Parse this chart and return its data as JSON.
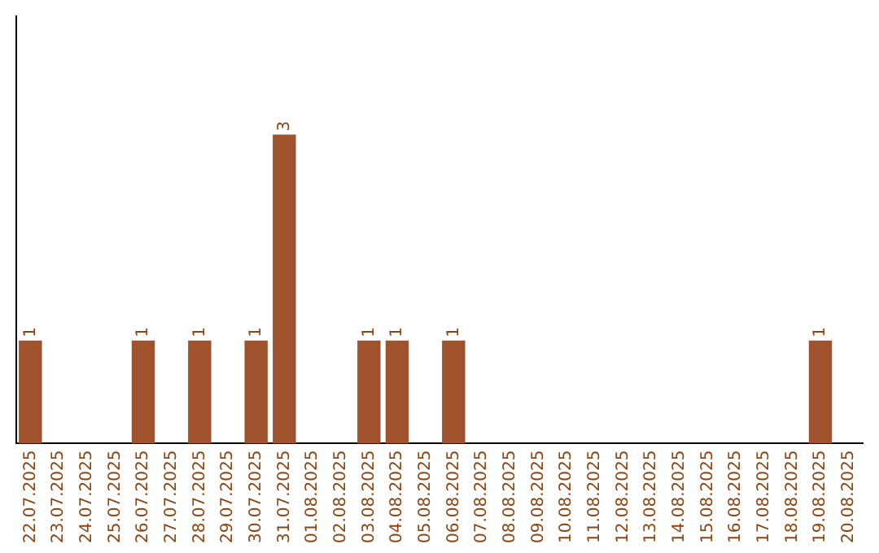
{
  "chart_data": {
    "type": "bar",
    "categories": [
      "22.07.2025",
      "23.07.2025",
      "24.07.2025",
      "25.07.2025",
      "26.07.2025",
      "27.07.2025",
      "28.07.2025",
      "29.07.2025",
      "30.07.2025",
      "31.07.2025",
      "01.08.2025",
      "02.08.2025",
      "03.08.2025",
      "04.08.2025",
      "05.08.2025",
      "06.08.2025",
      "07.08.2025",
      "08.08.2025",
      "09.08.2025",
      "10.08.2025",
      "11.08.2025",
      "12.08.2025",
      "13.08.2025",
      "14.08.2025",
      "15.08.2025",
      "16.08.2025",
      "17.08.2025",
      "18.08.2025",
      "19.08.2025",
      "20.08.2025"
    ],
    "values": [
      1,
      0,
      0,
      0,
      1,
      0,
      1,
      0,
      1,
      3,
      0,
      0,
      1,
      1,
      0,
      1,
      0,
      0,
      0,
      0,
      0,
      0,
      0,
      0,
      0,
      0,
      0,
      0,
      1,
      0
    ],
    "value_labels": [
      "1",
      null,
      null,
      null,
      "1",
      null,
      "1",
      null,
      "1",
      "3",
      null,
      null,
      "1",
      "1",
      null,
      "1",
      null,
      null,
      null,
      null,
      null,
      null,
      null,
      null,
      null,
      null,
      null,
      null,
      "1",
      null
    ],
    "color": "#a0522d",
    "ylim": [
      0,
      4.15
    ],
    "tick_labels": "x",
    "grid": false,
    "legend": false
  }
}
